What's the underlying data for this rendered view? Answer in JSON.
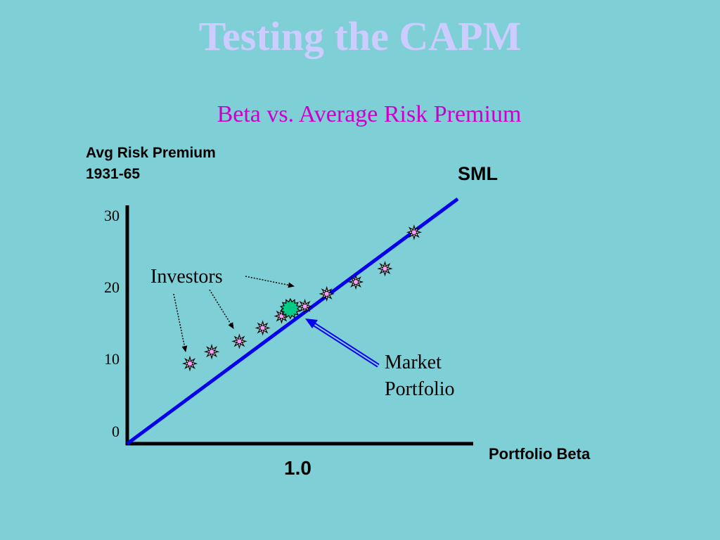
{
  "slide": {
    "title": "Testing the CAPM",
    "subtitle": "Beta vs. Average Risk Premium"
  },
  "chart_data": {
    "type": "scatter",
    "ylabel_line1": "Avg Risk Premium",
    "ylabel_line2": "1931-65",
    "xlabel": "Portfolio Beta",
    "x_tick_label": "1.0",
    "y_ticks": [
      "0",
      "10",
      "20",
      "30"
    ],
    "ylim": [
      0,
      31
    ],
    "xlim": [
      0,
      2.27
    ],
    "line_label": "SML",
    "sml": {
      "x": [
        0,
        2.27
      ],
      "y": [
        0,
        33
      ]
    },
    "series": [
      {
        "points": [
          {
            "x": 0.43,
            "y": 10.8
          },
          {
            "x": 0.58,
            "y": 12.4
          },
          {
            "x": 0.77,
            "y": 13.8
          },
          {
            "x": 0.93,
            "y": 15.6
          },
          {
            "x": 1.06,
            "y": 17.2
          },
          {
            "x": 1.22,
            "y": 18.5
          },
          {
            "x": 1.37,
            "y": 20.2
          },
          {
            "x": 1.57,
            "y": 21.8
          },
          {
            "x": 1.77,
            "y": 23.6
          },
          {
            "x": 1.97,
            "y": 28.5
          }
        ]
      }
    ],
    "market_portfolio": {
      "x": 1.12,
      "y": 18.2
    },
    "annotations": {
      "investors": "Investors",
      "market_line1": "Market",
      "market_line2": "Portfolio"
    },
    "colors": {
      "background": "#7fcfd6",
      "sml": "#0000ee",
      "point_fill": "#ff99ff",
      "market_fill": "#00cc88",
      "axis": "#000000"
    }
  }
}
